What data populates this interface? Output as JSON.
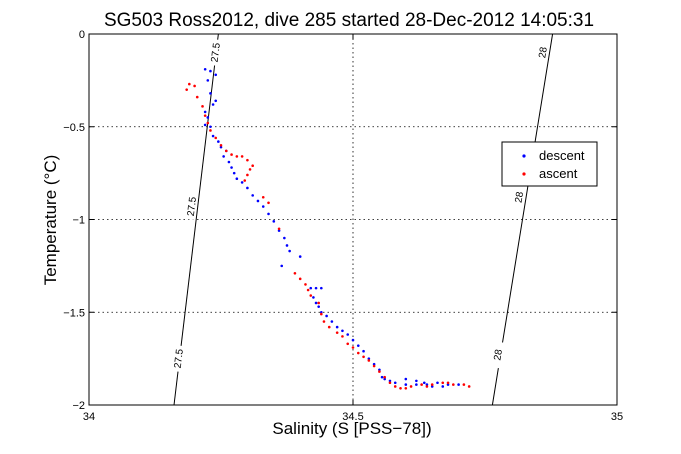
{
  "chart_data": {
    "type": "scatter",
    "title": "SG503 Ross2012, dive 285 started 28-Dec-2012 14:05:31",
    "xlabel": "Salinity (S [PSS−78])",
    "ylabel": "Temperature (°C)",
    "xlim": [
      34,
      35
    ],
    "ylim": [
      -2,
      0
    ],
    "xticks": [
      34,
      34.5,
      35
    ],
    "xtick_labels": [
      "34",
      "34.5",
      "35"
    ],
    "yticks": [
      0,
      -0.5,
      -1,
      -1.5,
      -2
    ],
    "ytick_labels": [
      "0",
      "−0.5",
      "−1",
      "−1.5",
      "−2"
    ],
    "grid": true,
    "legend_position": "right",
    "contours": [
      {
        "label": "27.5",
        "points": [
          [
            34.245,
            0
          ],
          [
            34.161,
            -2
          ]
        ],
        "label_positions": [
          [
            34.24,
            -0.1
          ],
          [
            34.195,
            -0.93
          ],
          [
            34.17,
            -1.75
          ]
        ]
      },
      {
        "label": "28",
        "points": [
          [
            34.878,
            0
          ],
          [
            34.764,
            -2
          ]
        ],
        "label_positions": [
          [
            34.86,
            -0.1
          ],
          [
            34.815,
            -0.88
          ],
          [
            34.775,
            -1.73
          ]
        ]
      }
    ],
    "series": [
      {
        "name": "descent",
        "color": "#0000ff",
        "points": [
          [
            34.22,
            -0.19
          ],
          [
            34.23,
            -0.2
          ],
          [
            34.225,
            -0.25
          ],
          [
            34.24,
            -0.22
          ],
          [
            34.23,
            -0.32
          ],
          [
            34.235,
            -0.38
          ],
          [
            34.24,
            -0.36
          ],
          [
            34.22,
            -0.42
          ],
          [
            34.225,
            -0.45
          ],
          [
            34.22,
            -0.49
          ],
          [
            34.23,
            -0.5
          ],
          [
            34.235,
            -0.55
          ],
          [
            34.245,
            -0.58
          ],
          [
            34.25,
            -0.61
          ],
          [
            34.26,
            -0.63
          ],
          [
            34.255,
            -0.66
          ],
          [
            34.265,
            -0.69
          ],
          [
            34.27,
            -0.72
          ],
          [
            34.275,
            -0.75
          ],
          [
            34.28,
            -0.78
          ],
          [
            34.29,
            -0.8
          ],
          [
            34.3,
            -0.83
          ],
          [
            34.31,
            -0.87
          ],
          [
            34.32,
            -0.9
          ],
          [
            34.33,
            -0.93
          ],
          [
            34.34,
            -0.97
          ],
          [
            34.35,
            -1.01
          ],
          [
            34.36,
            -1.06
          ],
          [
            34.37,
            -1.1
          ],
          [
            34.375,
            -1.14
          ],
          [
            34.38,
            -1.17
          ],
          [
            34.4,
            -1.2
          ],
          [
            34.365,
            -1.25
          ],
          [
            34.42,
            -1.37
          ],
          [
            34.43,
            -1.37
          ],
          [
            34.44,
            -1.37
          ],
          [
            34.425,
            -1.42
          ],
          [
            34.43,
            -1.45
          ],
          [
            34.435,
            -1.47
          ],
          [
            34.44,
            -1.5
          ],
          [
            34.45,
            -1.52
          ],
          [
            34.46,
            -1.55
          ],
          [
            34.47,
            -1.58
          ],
          [
            34.48,
            -1.6
          ],
          [
            34.49,
            -1.62
          ],
          [
            34.5,
            -1.65
          ],
          [
            34.51,
            -1.68
          ],
          [
            34.52,
            -1.71
          ],
          [
            34.53,
            -1.75
          ],
          [
            34.54,
            -1.78
          ],
          [
            34.55,
            -1.81
          ],
          [
            34.555,
            -1.85
          ],
          [
            34.56,
            -1.86
          ],
          [
            34.57,
            -1.87
          ],
          [
            34.58,
            -1.88
          ],
          [
            34.6,
            -1.89
          ],
          [
            34.62,
            -1.89
          ],
          [
            34.64,
            -1.89
          ],
          [
            34.66,
            -1.88
          ],
          [
            34.68,
            -1.89
          ],
          [
            34.7,
            -1.89
          ],
          [
            34.6,
            -1.86
          ],
          [
            34.62,
            -1.87
          ],
          [
            34.65,
            -1.9
          ],
          [
            34.67,
            -1.9
          ],
          [
            34.635,
            -1.88
          ]
        ]
      },
      {
        "name": "ascent",
        "color": "#ff0000",
        "points": [
          [
            34.19,
            -0.27
          ],
          [
            34.185,
            -0.3
          ],
          [
            34.2,
            -0.28
          ],
          [
            34.205,
            -0.34
          ],
          [
            34.215,
            -0.39
          ],
          [
            34.22,
            -0.44
          ],
          [
            34.225,
            -0.48
          ],
          [
            34.23,
            -0.52
          ],
          [
            34.24,
            -0.56
          ],
          [
            34.25,
            -0.6
          ],
          [
            34.26,
            -0.63
          ],
          [
            34.27,
            -0.65
          ],
          [
            34.28,
            -0.66
          ],
          [
            34.29,
            -0.66
          ],
          [
            34.3,
            -0.68
          ],
          [
            34.31,
            -0.71
          ],
          [
            34.305,
            -0.73
          ],
          [
            34.3,
            -0.76
          ],
          [
            34.295,
            -0.79
          ],
          [
            34.33,
            -0.88
          ],
          [
            34.34,
            -0.91
          ],
          [
            34.36,
            -1.05
          ],
          [
            34.39,
            -1.29
          ],
          [
            34.4,
            -1.32
          ],
          [
            34.41,
            -1.35
          ],
          [
            34.415,
            -1.38
          ],
          [
            34.42,
            -1.41
          ],
          [
            34.435,
            -1.45
          ],
          [
            34.44,
            -1.51
          ],
          [
            34.445,
            -1.55
          ],
          [
            34.455,
            -1.58
          ],
          [
            34.47,
            -1.61
          ],
          [
            34.48,
            -1.63
          ],
          [
            34.49,
            -1.67
          ],
          [
            34.5,
            -1.69
          ],
          [
            34.51,
            -1.72
          ],
          [
            34.52,
            -1.74
          ],
          [
            34.53,
            -1.76
          ],
          [
            34.54,
            -1.79
          ],
          [
            34.55,
            -1.82
          ],
          [
            34.56,
            -1.85
          ],
          [
            34.57,
            -1.88
          ],
          [
            34.58,
            -1.9
          ],
          [
            34.59,
            -1.91
          ],
          [
            34.61,
            -1.9
          ],
          [
            34.63,
            -1.89
          ],
          [
            34.65,
            -1.89
          ],
          [
            34.67,
            -1.88
          ],
          [
            34.69,
            -1.89
          ],
          [
            34.71,
            -1.89
          ],
          [
            34.72,
            -1.9
          ],
          [
            34.6,
            -1.91
          ],
          [
            34.64,
            -1.9
          ],
          [
            34.68,
            -1.88
          ]
        ]
      }
    ]
  }
}
